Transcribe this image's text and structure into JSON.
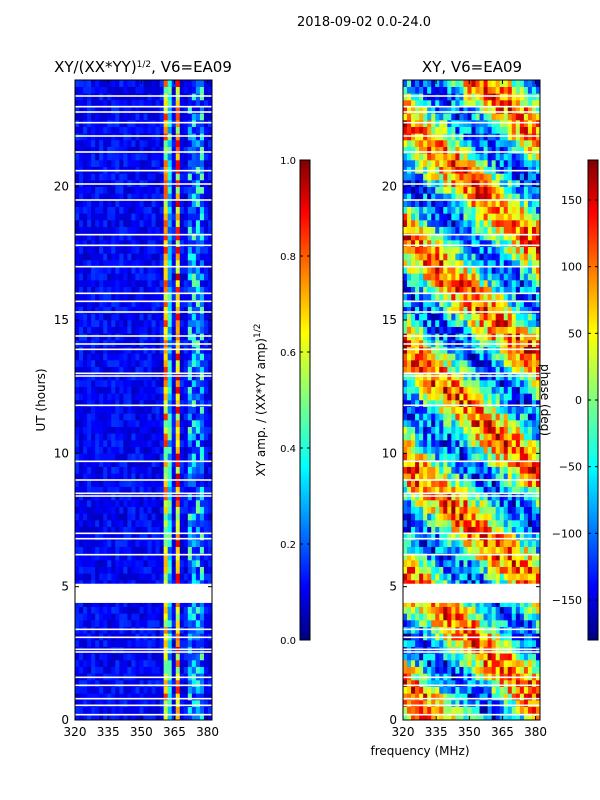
{
  "figure": {
    "suptitle": "2018-09-02 0.0-24.0",
    "shared_xlabel": "frequency (MHz)"
  },
  "chart_data": [
    {
      "type": "heatmap",
      "title": "XY/(XX*YY)^1/2, V6=EA09",
      "xlabel": "",
      "ylabel": "UT (hours)",
      "xlim": [
        320,
        382
      ],
      "ylim": [
        0,
        24
      ],
      "xticks": [
        320,
        335,
        350,
        365,
        380
      ],
      "yticks": [
        0,
        5,
        10,
        15,
        20
      ],
      "colorbar": {
        "label": "XY amp. / (XX*YY amp)^1/2",
        "range": [
          0.0,
          1.0
        ],
        "ticks": [
          "0.0",
          "0.2",
          "0.4",
          "0.6",
          "0.8",
          "1.0"
        ]
      },
      "colormap": "jet"
    },
    {
      "type": "heatmap",
      "title": "XY, V6=EA09",
      "xlabel": "frequency (MHz)",
      "ylabel": "",
      "xlim": [
        320,
        382
      ],
      "ylim": [
        0,
        24
      ],
      "xticks": [
        320,
        335,
        350,
        365,
        380
      ],
      "yticks": [
        0,
        5,
        10,
        15,
        20
      ],
      "colorbar": {
        "label": "phase (deg)",
        "range": [
          -180,
          180
        ],
        "ticks": [
          "150",
          "100",
          "50",
          "0",
          "−50",
          "−100",
          "−150"
        ]
      },
      "colormap": "jet"
    }
  ],
  "colors": {
    "jet_stops": [
      "#00007f",
      "#0000ff",
      "#007fff",
      "#00ffff",
      "#7fff7f",
      "#ffff00",
      "#ff7f00",
      "#ff0000",
      "#7f0000"
    ]
  }
}
